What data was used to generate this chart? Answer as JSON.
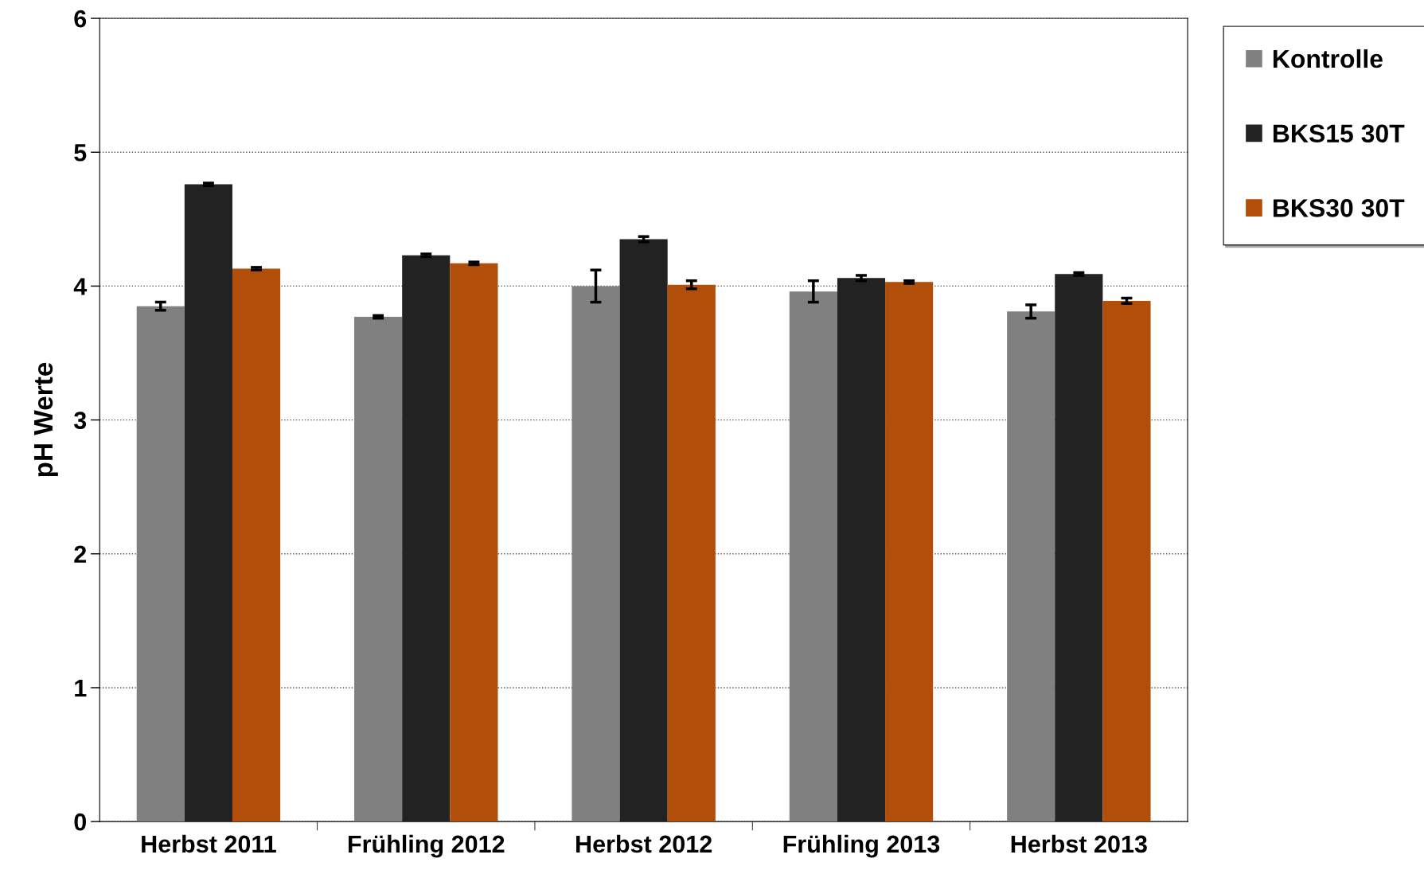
{
  "chart_data": {
    "type": "bar",
    "ylabel": "pH Werte",
    "categories": [
      "Herbst 2011",
      "Frühling 2012",
      "Herbst 2012",
      "Frühling 2013",
      "Herbst 2013"
    ],
    "series": [
      {
        "name": "Kontrolle",
        "color": "#808080",
        "values": [
          3.85,
          3.77,
          4.0,
          3.96,
          3.81
        ],
        "errors": [
          0.03,
          0.01,
          0.12,
          0.08,
          0.05
        ]
      },
      {
        "name": "BKS15 30T",
        "color": "#222222",
        "values": [
          4.76,
          4.23,
          4.35,
          4.06,
          4.09
        ],
        "errors": [
          0.01,
          0.01,
          0.02,
          0.02,
          0.01
        ]
      },
      {
        "name": "BKS30 30T",
        "color": "#b04e0a",
        "values": [
          4.13,
          4.17,
          4.01,
          4.03,
          3.89
        ],
        "errors": [
          0.01,
          0.01,
          0.03,
          0.01,
          0.02
        ]
      }
    ],
    "ylim": [
      0,
      6
    ],
    "yticks": [
      0,
      1,
      2,
      3,
      4,
      5,
      6
    ],
    "grid": "y",
    "legend": "top right"
  }
}
